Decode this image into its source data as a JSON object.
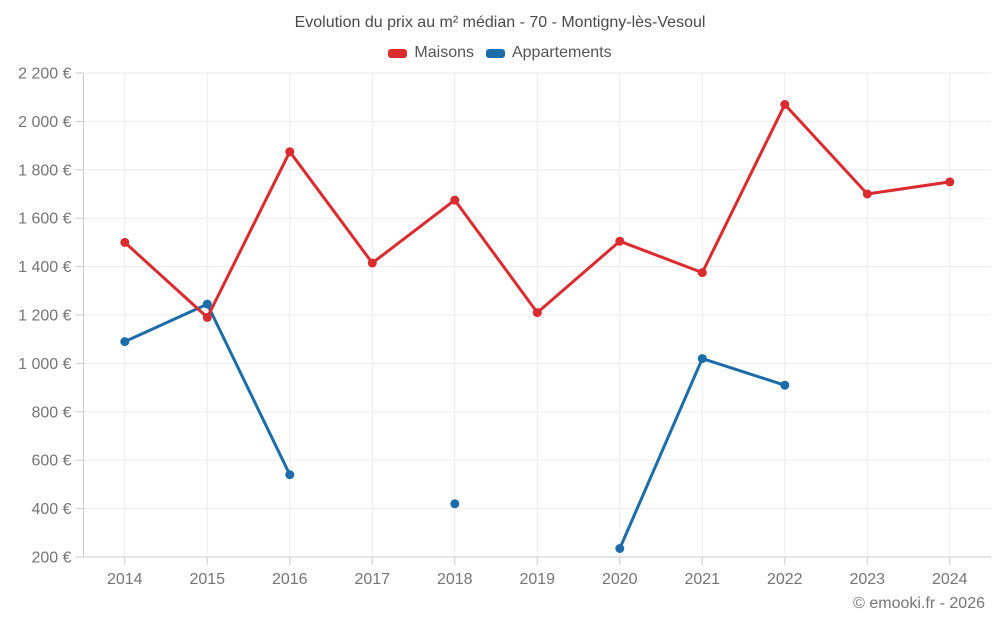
{
  "chart_data": {
    "type": "line",
    "title": "Evolution du prix au m² médian - 70 - Montigny-lès-Vesoul",
    "categories": [
      "2014",
      "2015",
      "2016",
      "2017",
      "2018",
      "2019",
      "2020",
      "2021",
      "2022",
      "2023",
      "2024"
    ],
    "series": [
      {
        "id": "maisons",
        "name": "Maisons",
        "color": "#da2b2f",
        "values": [
          1500,
          1190,
          1875,
          1415,
          1675,
          1210,
          1505,
          1375,
          2070,
          1700,
          1750
        ]
      },
      {
        "id": "appartements",
        "name": "Appartements",
        "color": "#1b6ca8",
        "values": [
          1090,
          1245,
          540,
          null,
          420,
          null,
          235,
          1020,
          910,
          null,
          null
        ]
      }
    ],
    "ylabel": "",
    "xlabel": "",
    "ylim": [
      200,
      2200
    ],
    "y_step": 200,
    "y_ticks": [
      "200 €",
      "400 €",
      "600 €",
      "800 €",
      "1 000 €",
      "1 200 €",
      "1 400 €",
      "1 600 €",
      "1 800 €",
      "2 000 €",
      "2 200 €"
    ],
    "grid": "on",
    "legend_position": "top-center",
    "colors": {
      "grid": "#ededed",
      "axis": "#cccccc",
      "tick_text": "#757575",
      "title_text": "#4a4a4a",
      "legend_text": "#555555"
    }
  },
  "footer": {
    "copyright": "© emooki.fr - 2026"
  }
}
